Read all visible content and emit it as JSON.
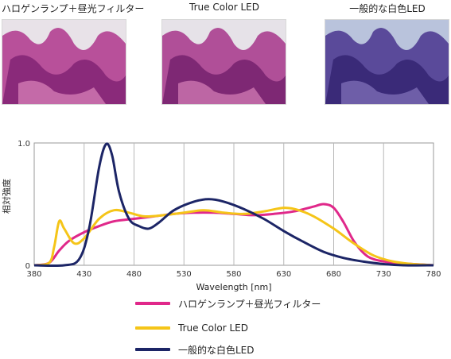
{
  "images": [
    {
      "caption": "ハロゲンランプ＋昼光フィルター",
      "tint": "halogen"
    },
    {
      "caption": "True Color LED",
      "tint": "truecolor"
    },
    {
      "caption": "一般的な白色LED",
      "tint": "white"
    }
  ],
  "chart_data": {
    "type": "line",
    "xlabel": "Wavelength [nm]",
    "ylabel": "相対強度",
    "xlim": [
      380,
      780
    ],
    "ylim": [
      0,
      1.0
    ],
    "xticks": [
      380,
      430,
      480,
      530,
      580,
      630,
      680,
      730,
      780
    ],
    "ytick_labels": [
      {
        "value": 0,
        "label": "0"
      },
      {
        "value": 1.0,
        "label": "1.0"
      }
    ],
    "grid": "vertical",
    "legend_position": "bottom",
    "series": [
      {
        "name": "ハロゲンランプ＋昼光フィルター",
        "color": "#e0288a",
        "x": [
          380,
          395,
          405,
          415,
          430,
          445,
          460,
          480,
          500,
          520,
          540,
          560,
          580,
          600,
          620,
          640,
          660,
          670,
          680,
          690,
          700,
          710,
          720,
          740,
          760,
          780
        ],
        "y": [
          0.0,
          0.02,
          0.12,
          0.2,
          0.27,
          0.32,
          0.36,
          0.38,
          0.4,
          0.42,
          0.43,
          0.43,
          0.42,
          0.41,
          0.42,
          0.44,
          0.48,
          0.5,
          0.47,
          0.35,
          0.2,
          0.1,
          0.05,
          0.02,
          0.01,
          0.0
        ]
      },
      {
        "name": "True Color LED",
        "color": "#f5c518",
        "x": [
          380,
          395,
          400,
          405,
          410,
          420,
          430,
          445,
          460,
          475,
          490,
          510,
          530,
          550,
          570,
          590,
          610,
          630,
          645,
          660,
          680,
          700,
          720,
          740,
          760,
          780
        ],
        "y": [
          0.0,
          0.02,
          0.15,
          0.36,
          0.3,
          0.18,
          0.22,
          0.38,
          0.45,
          0.43,
          0.4,
          0.41,
          0.43,
          0.45,
          0.43,
          0.42,
          0.44,
          0.47,
          0.45,
          0.4,
          0.3,
          0.18,
          0.08,
          0.03,
          0.01,
          0.0
        ]
      },
      {
        "name": "一般的な白色LED",
        "color": "#1c2566",
        "x": [
          380,
          410,
          425,
          435,
          445,
          452,
          458,
          465,
          475,
          485,
          495,
          505,
          520,
          540,
          555,
          570,
          590,
          610,
          630,
          650,
          670,
          690,
          710,
          730,
          750,
          780
        ],
        "y": [
          0.0,
          0.0,
          0.05,
          0.3,
          0.8,
          0.99,
          0.9,
          0.6,
          0.38,
          0.32,
          0.3,
          0.35,
          0.45,
          0.52,
          0.54,
          0.52,
          0.46,
          0.38,
          0.28,
          0.19,
          0.11,
          0.06,
          0.03,
          0.01,
          0.0,
          0.0
        ]
      }
    ]
  }
}
